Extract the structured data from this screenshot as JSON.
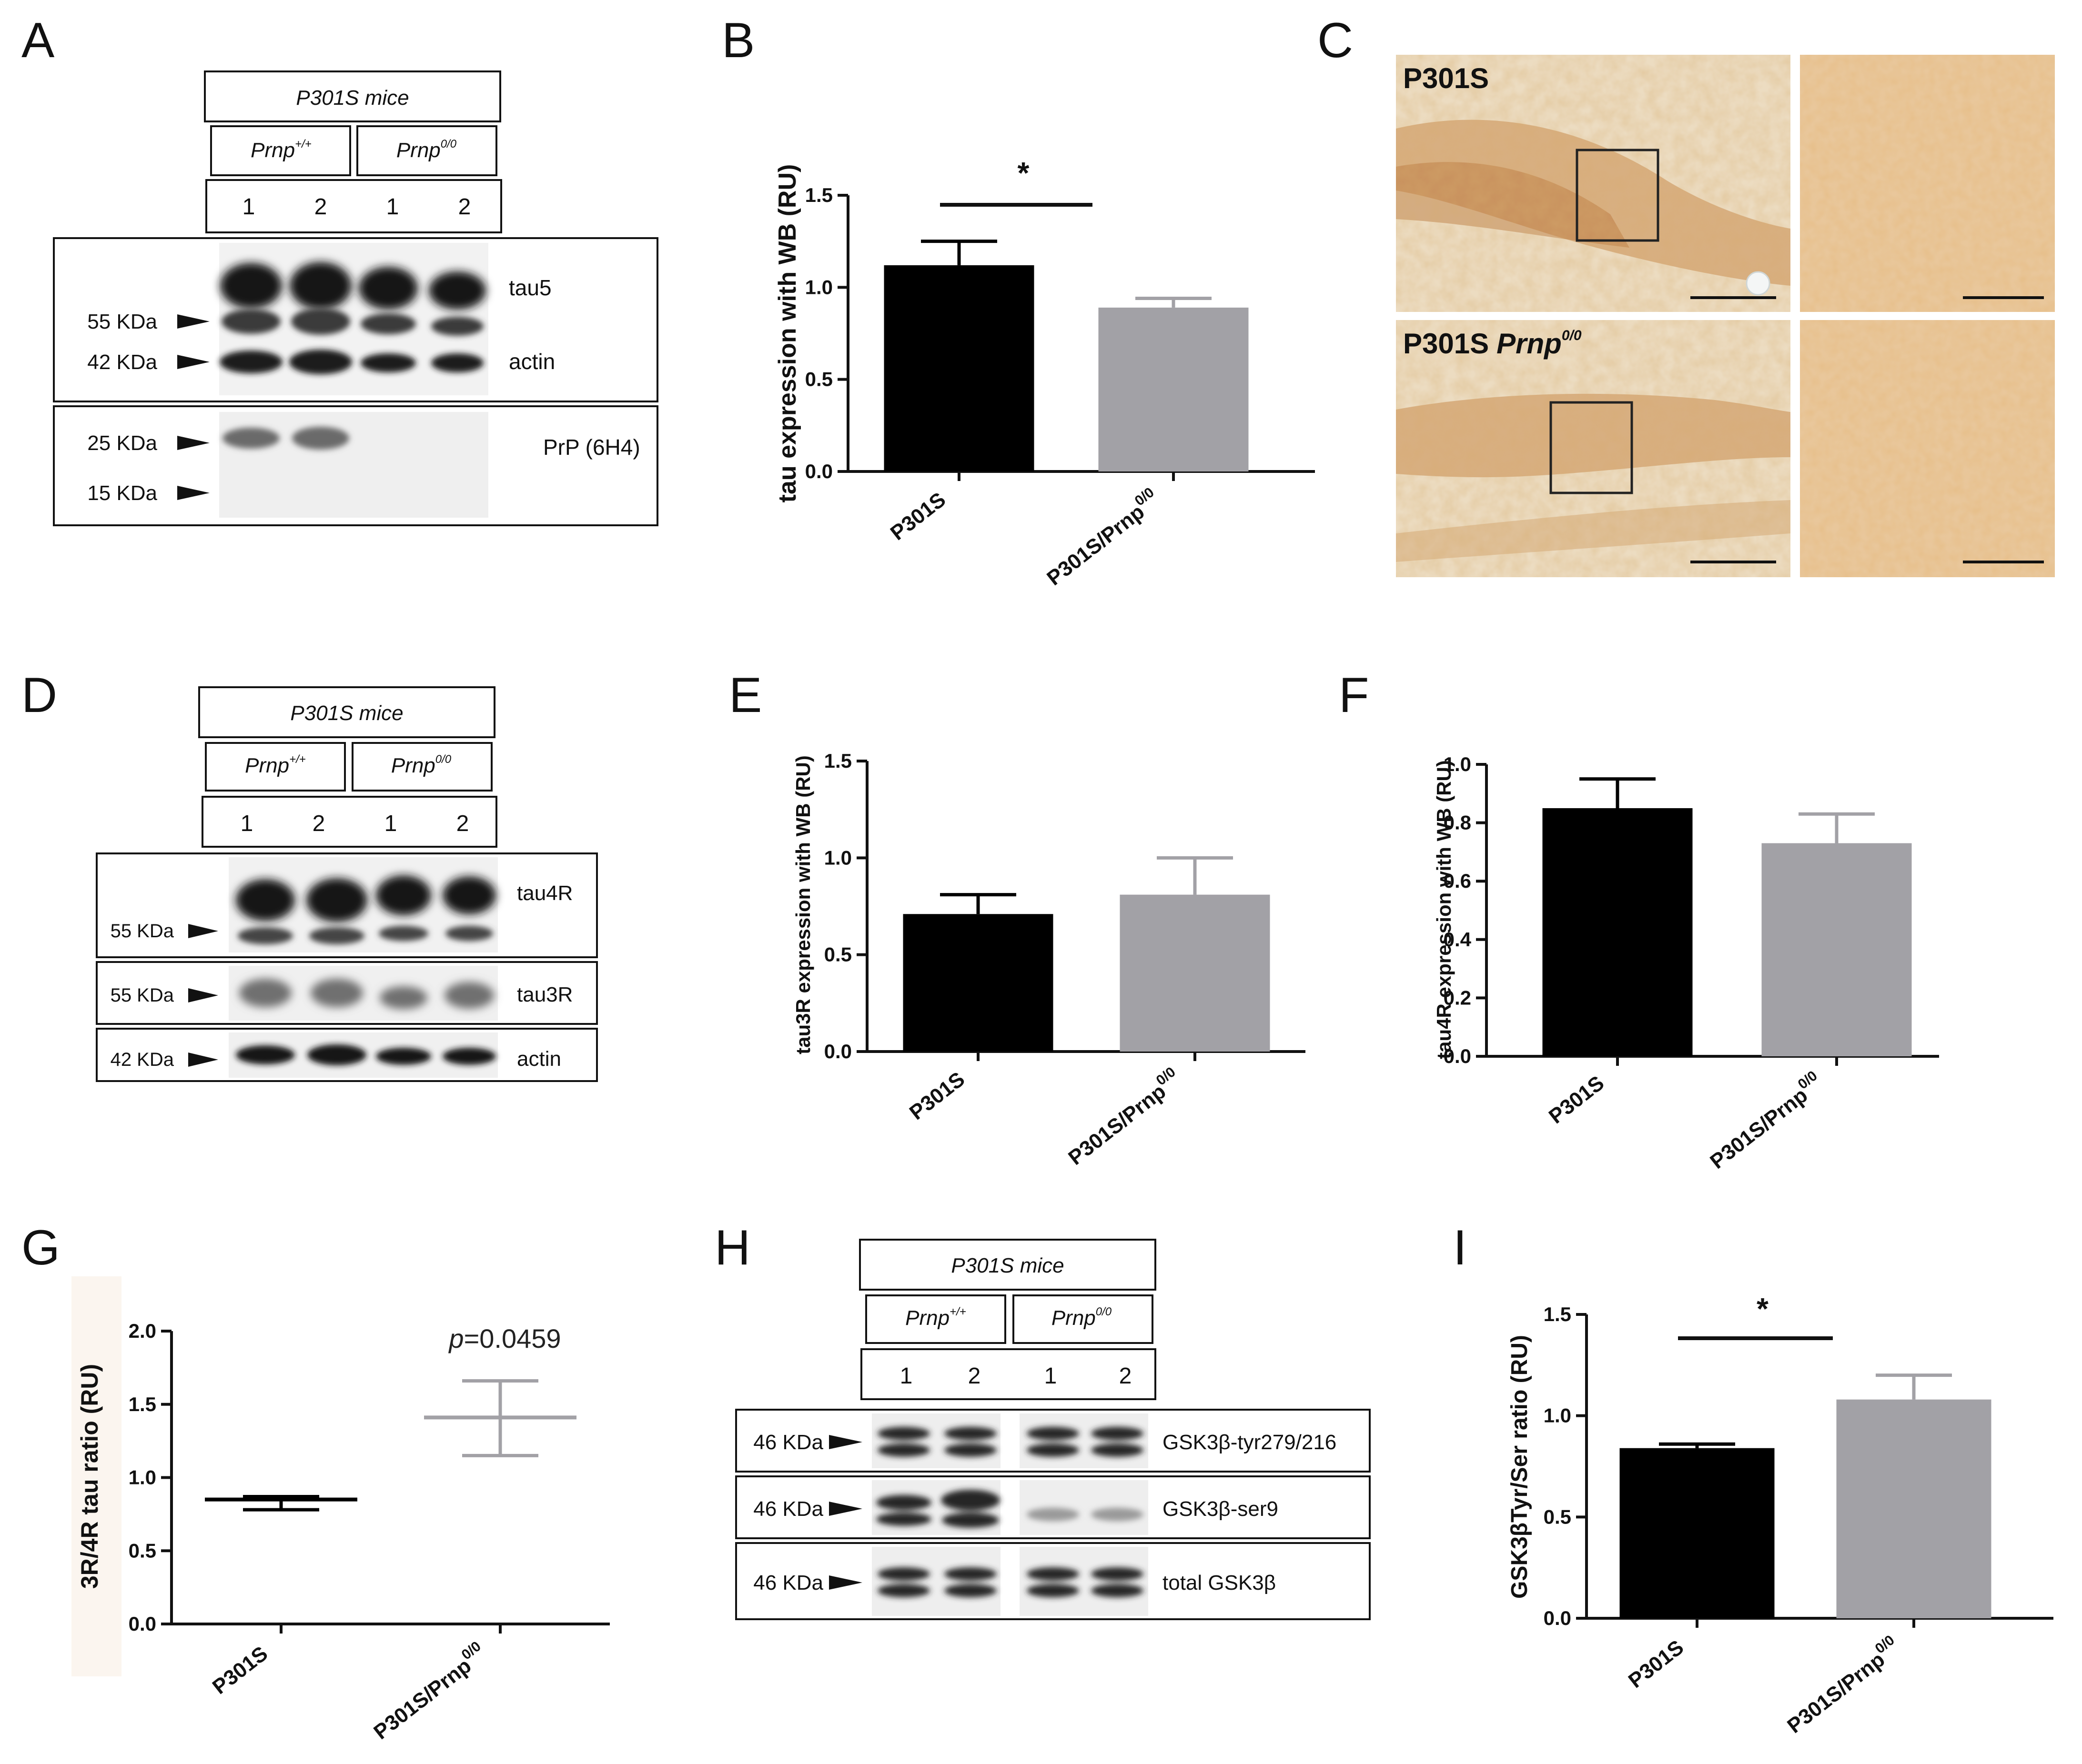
{
  "panel_letters": [
    "A",
    "B",
    "C",
    "D",
    "E",
    "F",
    "G",
    "H",
    "I"
  ],
  "blot_a": {
    "header": "P301S mice",
    "group1": "Prnp",
    "group1_sup": "+/+",
    "group2": "Prnp",
    "group2_sup": "0/0",
    "lanes": [
      "1",
      "2",
      "1",
      "2"
    ],
    "markers": [
      "55 KDa",
      "42 KDa",
      "25 KDa",
      "15 KDa"
    ],
    "labels": [
      "tau5",
      "actin",
      "PrP (6H4)"
    ]
  },
  "blot_d": {
    "header": "P301S mice",
    "group1": "Prnp",
    "group1_sup": "+/+",
    "group2": "Prnp",
    "group2_sup": "0/0",
    "lanes": [
      "1",
      "2",
      "1",
      "2"
    ],
    "markers": [
      "55 KDa",
      "55 KDa",
      "42 KDa"
    ],
    "labels": [
      "tau4R",
      "tau3R",
      "actin"
    ]
  },
  "blot_h": {
    "header": "P301S mice",
    "group1": "Prnp",
    "group1_sup": "+/+",
    "group2": "Prnp",
    "group2_sup": "0/0",
    "lanes": [
      "1",
      "2",
      "1",
      "2"
    ],
    "markers": [
      "46 KDa",
      "46 KDa",
      "46 KDa"
    ],
    "labels": [
      "GSK3β-tyr279/216",
      "GSK3β-ser9",
      "total GSK3β"
    ]
  },
  "micrographs": {
    "top_label": "P301S",
    "bottom_label": "P301S",
    "bottom_italic": "Prnp",
    "bottom_sup": "0/0"
  },
  "chart_data": [
    {
      "panel": "B",
      "type": "bar",
      "categories": [
        "P301S",
        "P301S/Prnp0/0"
      ],
      "values": [
        1.12,
        0.89
      ],
      "errors": [
        0.13,
        0.05
      ],
      "colors": [
        "#000000",
        "#a2a1a6"
      ],
      "ylabel": "tau expression with WB (RU)",
      "ylim": [
        0,
        1.5
      ],
      "yticks": [
        "0.0",
        "0.5",
        "1.0",
        "1.5"
      ],
      "xlabels": [
        "P301S",
        "P301S/Prnp",
        "0/0"
      ],
      "significance": "*"
    },
    {
      "panel": "E",
      "type": "bar",
      "categories": [
        "P301S",
        "P301S/Prnp0/0"
      ],
      "values": [
        0.71,
        0.81
      ],
      "errors": [
        0.1,
        0.19
      ],
      "colors": [
        "#000000",
        "#a2a1a6"
      ],
      "ylabel": "tau3R expression with WB (RU)",
      "ylim": [
        0,
        1.5
      ],
      "yticks": [
        "0.0",
        "0.5",
        "1.0",
        "1.5"
      ],
      "xlabels": [
        "P301S",
        "P301S/Prnp",
        "0/0"
      ]
    },
    {
      "panel": "F",
      "type": "bar",
      "categories": [
        "P301S",
        "P301S/Prnp0/0"
      ],
      "values": [
        0.85,
        0.73
      ],
      "errors": [
        0.1,
        0.1
      ],
      "colors": [
        "#000000",
        "#a2a1a6"
      ],
      "ylabel": "tau4R expression with WB (RU)",
      "ylim": [
        0,
        1.0
      ],
      "yticks": [
        "0.0",
        "0.2",
        "0.4",
        "0.6",
        "0.8",
        "1.0"
      ],
      "xlabels": [
        "P301S",
        "P301S/Prnp",
        "0/0"
      ]
    },
    {
      "panel": "G",
      "type": "scatter",
      "categories": [
        "P301S",
        "P301S/Prnp0/0"
      ],
      "means": [
        0.85,
        1.41
      ],
      "lower": [
        0.78,
        1.15
      ],
      "upper": [
        0.87,
        1.66
      ],
      "colors": [
        "#000000",
        "#a2a1a6"
      ],
      "ylabel": "3R/4R tau ratio (RU)",
      "ylim": [
        0,
        2.0
      ],
      "yticks": [
        "0.0",
        "0.5",
        "1.0",
        "1.5",
        "2.0"
      ],
      "xlabels": [
        "P301S",
        "P301S/Prnp",
        "0/0"
      ],
      "annotation_italic": "p",
      "annotation": "=0.0459"
    },
    {
      "panel": "I",
      "type": "bar",
      "categories": [
        "P301S",
        "P301S/Prnp0/0"
      ],
      "values": [
        0.84,
        1.08
      ],
      "errors": [
        0.02,
        0.12
      ],
      "colors": [
        "#000000",
        "#a2a1a6"
      ],
      "ylabel": "GSK3βTyr/Ser ratio (RU)",
      "ylim": [
        0,
        1.5
      ],
      "yticks": [
        "0.0",
        "0.5",
        "1.0",
        "1.5"
      ],
      "xlabels": [
        "P301S",
        "P301S/Prnp",
        "0/0"
      ],
      "significance": "*"
    }
  ]
}
